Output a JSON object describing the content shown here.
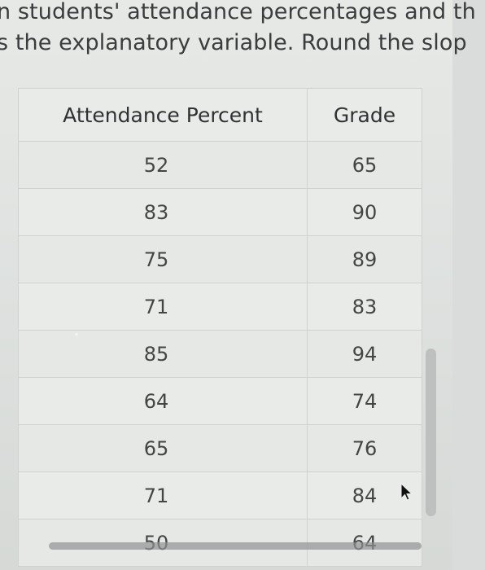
{
  "question": {
    "line1": "n students' attendance percentages and th",
    "line2": "s the explanatory variable. Round the slop"
  },
  "table": {
    "headers": [
      "Attendance Percent",
      "Grade"
    ],
    "rows": [
      [
        "52",
        "65"
      ],
      [
        "83",
        "90"
      ],
      [
        "75",
        "89"
      ],
      [
        "71",
        "83"
      ],
      [
        "85",
        "94"
      ],
      [
        "64",
        "74"
      ],
      [
        "65",
        "76"
      ],
      [
        "71",
        "84"
      ],
      [
        "50",
        "64"
      ]
    ]
  },
  "icons": {
    "cursor": "mouse-pointer-icon"
  }
}
